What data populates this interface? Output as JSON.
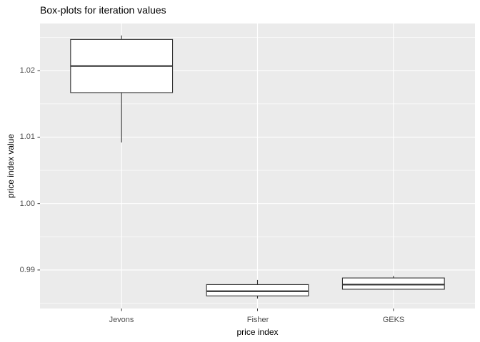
{
  "chart_data": {
    "type": "boxplot",
    "title": "Box-plots for iteration values",
    "xlabel": "price index",
    "ylabel": "price index value",
    "categories": [
      "Jevons",
      "Fisher",
      "GEKS"
    ],
    "series": [
      {
        "name": "Jevons",
        "min": 1.0092,
        "q1": 1.0167,
        "median": 1.0207,
        "q3": 1.0247,
        "max": 1.0253
      },
      {
        "name": "Fisher",
        "min": 0.9857,
        "q1": 0.9861,
        "median": 0.9868,
        "q3": 0.9878,
        "max": 0.9885
      },
      {
        "name": "GEKS",
        "min": 0.9871,
        "q1": 0.9871,
        "median": 0.9878,
        "q3": 0.9888,
        "max": 0.9891
      }
    ],
    "ylim": [
      0.9842,
      1.0271
    ],
    "yticks": [
      0.99,
      1.0,
      1.01,
      1.02
    ],
    "ytick_labels": [
      "0.99",
      "1.00",
      "1.01",
      "1.02"
    ],
    "yticks_minor": [
      0.985,
      0.995,
      1.005,
      1.015,
      1.025
    ],
    "box_width_fraction": 0.75,
    "grid": true,
    "legend": false,
    "colors": {
      "panel_bg": "#EBEBEB",
      "gridline": "#FFFFFF",
      "box_stroke": "#333333",
      "box_fill": "#FFFFFF",
      "axis_text": "#4D4D4D",
      "tick_mark": "#333333",
      "title_text": "#000000"
    }
  }
}
